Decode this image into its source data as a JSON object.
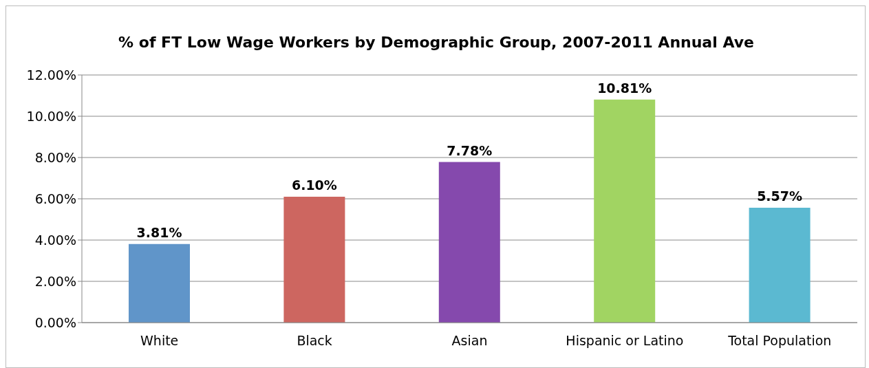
{
  "chart_data": {
    "type": "bar",
    "title": "% of FT Low Wage Workers by Demographic Group, 2007-2011 Annual Ave",
    "categories": [
      "White",
      "Black",
      "Asian",
      "Hispanic or Latino",
      "Total Population"
    ],
    "values": [
      3.81,
      6.1,
      7.78,
      10.81,
      5.57
    ],
    "colors": [
      "#6095c9",
      "#cd6660",
      "#8549ad",
      "#a1d462",
      "#5bb9d1"
    ],
    "value_labels": [
      "3.81%",
      "6.10%",
      "7.78%",
      "10.81%",
      "5.57%"
    ],
    "ylim": [
      0,
      12
    ],
    "yticks": [
      {
        "value": 0,
        "label": "0.00%"
      },
      {
        "value": 2,
        "label": "2.00%"
      },
      {
        "value": 4,
        "label": "4.00%"
      },
      {
        "value": 6,
        "label": "6.00%"
      },
      {
        "value": 8,
        "label": "8.00%"
      },
      {
        "value": 10,
        "label": "10.00%"
      },
      {
        "value": 12,
        "label": "12.00%"
      }
    ],
    "grid": "y",
    "legend": false
  }
}
